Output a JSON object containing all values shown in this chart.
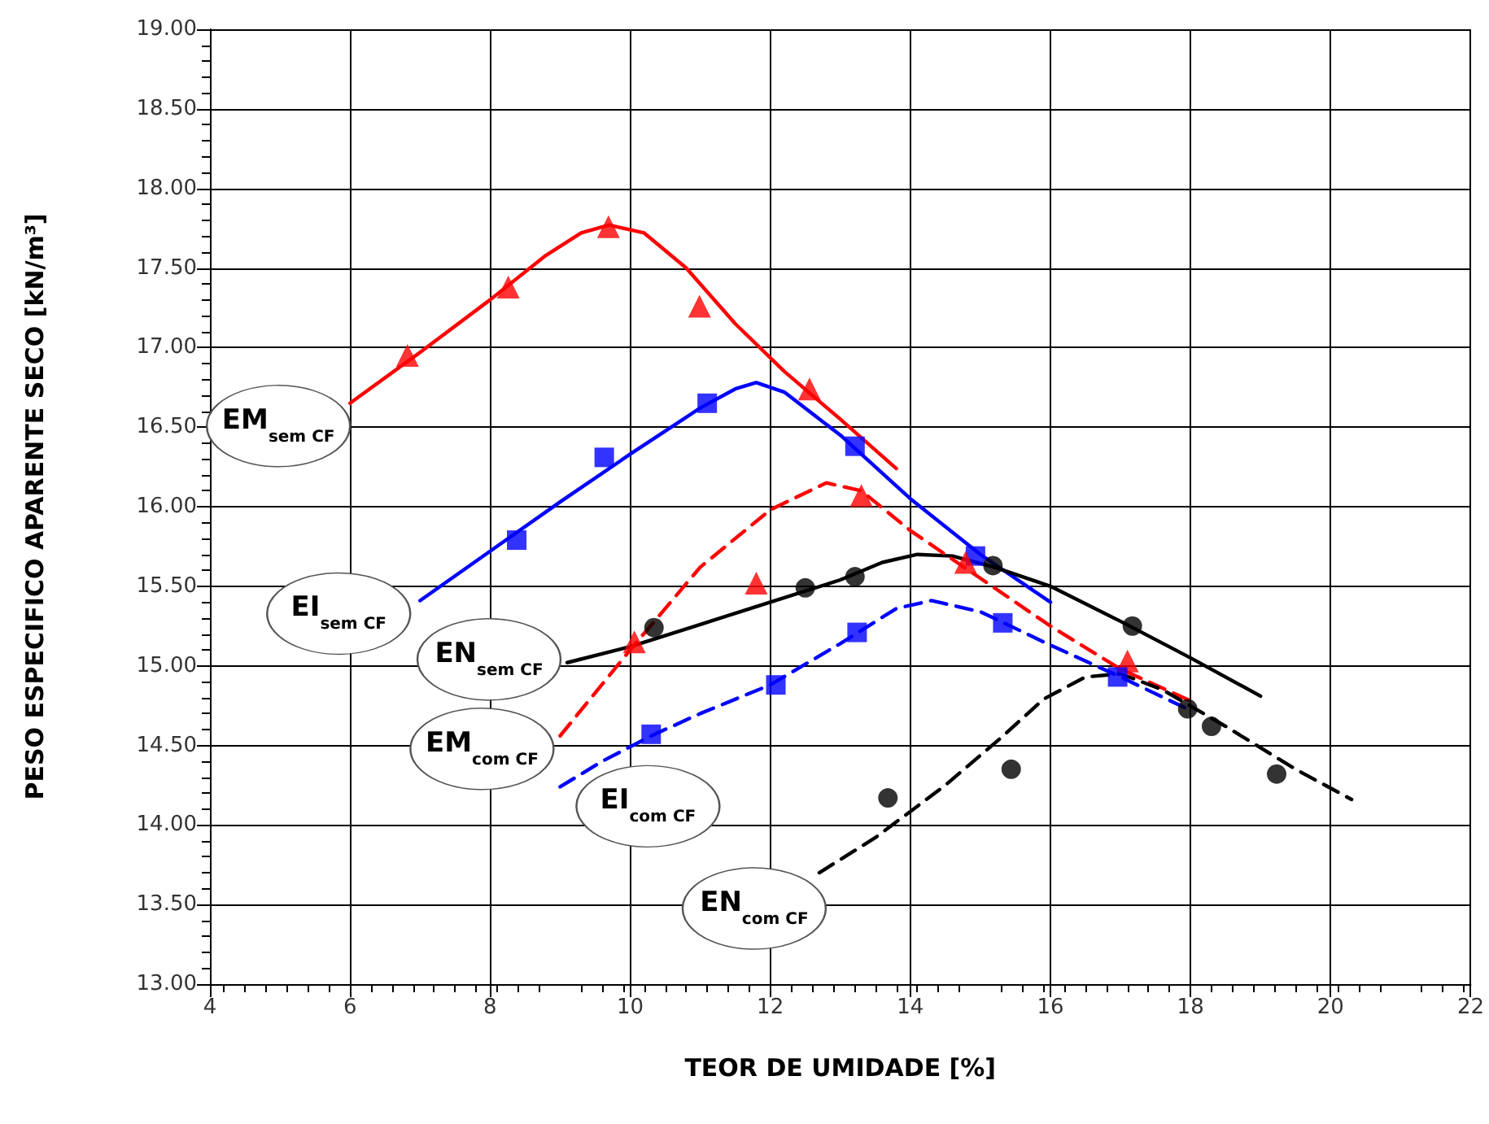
{
  "chart_data": {
    "type": "scatter",
    "xlabel": "TEOR DE UMIDADE [%]",
    "ylabel": "PESO ESPECIFICO APARENTE SECO [kN/m³]",
    "xlim": [
      4,
      22
    ],
    "xticks": [
      4,
      6,
      8,
      10,
      12,
      14,
      16,
      18,
      20,
      22
    ],
    "ylim": [
      13,
      19
    ],
    "yticks": [
      {
        "value": 13,
        "label": "13.00"
      },
      {
        "value": 13.5,
        "label": "13.50"
      },
      {
        "value": 14,
        "label": "14.00"
      },
      {
        "value": 14.5,
        "label": "14.50"
      },
      {
        "value": 15,
        "label": "15.00"
      },
      {
        "value": 15.5,
        "label": "15.50"
      },
      {
        "value": 16,
        "label": "16.00"
      },
      {
        "value": 16.5,
        "label": "16.50"
      },
      {
        "value": 17,
        "label": "17.00"
      },
      {
        "value": 17.5,
        "label": "17.50"
      },
      {
        "value": 18,
        "label": "18.00"
      },
      {
        "value": 18.5,
        "label": "18.50"
      },
      {
        "value": 19,
        "label": "19.00"
      }
    ],
    "grid": true,
    "legend": false,
    "series": [
      {
        "type": "line",
        "name": "EM$_{sem CF}$",
        "color": "#ff0000",
        "marker": "none",
        "line_style": "solid",
        "x": [
          6,
          7,
          8,
          8.8,
          9.3,
          9.7,
          10.2,
          10.8,
          11.5,
          12.2,
          13,
          13.8
        ],
        "values": [
          16.65,
          16.97,
          17.3,
          17.58,
          17.72,
          17.77,
          17.72,
          17.5,
          17.15,
          16.85,
          16.55,
          16.24
        ]
      },
      {
        "type": "line",
        "name": "EI$_{sem CF}$",
        "color": "#0000ff",
        "marker": "none",
        "line_style": "solid",
        "x": [
          7,
          8,
          9,
          10,
          11,
          11.5,
          11.8,
          12.2,
          13,
          14,
          15,
          16
        ],
        "values": [
          15.41,
          15.72,
          16.03,
          16.33,
          16.62,
          16.74,
          16.78,
          16.72,
          16.45,
          16.05,
          15.7,
          15.4
        ]
      },
      {
        "type": "line",
        "name": "EN$_{sem CF}$",
        "color": "#000000",
        "marker": "none",
        "line_style": "solid",
        "x": [
          9.1,
          10,
          11,
          12,
          13,
          13.6,
          14.1,
          14.6,
          15.2,
          16,
          17,
          18,
          19
        ],
        "values": [
          15.02,
          15.12,
          15.26,
          15.4,
          15.54,
          15.65,
          15.7,
          15.69,
          15.62,
          15.5,
          15.28,
          15.05,
          14.81
        ]
      },
      {
        "type": "line",
        "name": "EM$_{com CF}$",
        "color": "#ff0000",
        "marker": "none",
        "line_style": "dashed",
        "x": [
          9,
          10,
          11,
          12,
          12.8,
          13.3,
          14,
          15,
          16,
          17,
          18
        ],
        "values": [
          14.56,
          15.1,
          15.62,
          15.98,
          16.15,
          16.1,
          15.85,
          15.55,
          15.25,
          14.98,
          14.78
        ]
      },
      {
        "type": "line",
        "name": "EI$_{com CF}$",
        "color": "#0000ff",
        "marker": "none",
        "line_style": "dashed",
        "x": [
          9,
          9.6,
          10.3,
          11,
          12,
          13,
          13.8,
          14.3,
          15,
          16,
          17,
          18
        ],
        "values": [
          14.24,
          14.4,
          14.56,
          14.7,
          14.88,
          15.14,
          15.36,
          15.41,
          15.34,
          15.13,
          14.93,
          14.72
        ]
      },
      {
        "type": "line",
        "name": "EN$_{com CF}$",
        "color": "#000000",
        "marker": "none",
        "line_style": "dashed",
        "x": [
          12.7,
          13.5,
          14.5,
          15.3,
          15.9,
          16.5,
          17,
          17.6,
          18.5,
          19.5,
          20.3
        ],
        "values": [
          13.7,
          13.92,
          14.25,
          14.55,
          14.79,
          14.93,
          14.95,
          14.85,
          14.62,
          14.35,
          14.16
        ]
      },
      {
        "color": "#ff0000",
        "marker": "triangle",
        "x": [
          6.82,
          8.26,
          9.69,
          10.99,
          12.56
        ],
        "values": [
          16.95,
          17.38,
          17.76,
          17.26,
          16.74
        ]
      },
      {
        "color": "#0000ff",
        "marker": "square",
        "x": [
          8.38,
          9.63,
          11.1,
          13.21,
          14.93
        ],
        "values": [
          15.79,
          16.31,
          16.65,
          16.38,
          15.69
        ]
      },
      {
        "color": "#000000",
        "marker": "circle",
        "x": [
          10.34,
          12.5,
          13.21,
          15.18,
          17.17
        ],
        "values": [
          15.24,
          15.49,
          15.56,
          15.63,
          15.25
        ]
      },
      {
        "color": "#ff0000",
        "marker": "triangle",
        "x": [
          10.06,
          11.8,
          13.3,
          14.79,
          17.1
        ],
        "values": [
          15.15,
          15.52,
          16.07,
          15.65,
          15.03
        ]
      },
      {
        "color": "#0000ff",
        "marker": "square",
        "x": [
          10.3,
          12.08,
          13.24,
          15.32,
          16.96
        ],
        "values": [
          14.57,
          14.88,
          15.21,
          15.27,
          14.93
        ]
      },
      {
        "color": "#000000",
        "marker": "circle",
        "x": [
          13.68,
          15.44,
          17.96,
          18.3,
          19.23
        ],
        "values": [
          14.17,
          14.35,
          14.73,
          14.62,
          14.32
        ]
      }
    ]
  }
}
